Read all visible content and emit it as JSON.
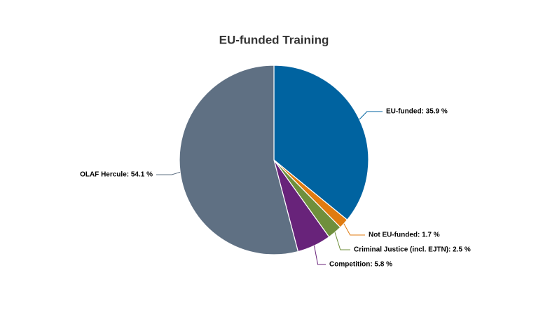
{
  "chart_data": {
    "type": "pie",
    "title": "EU-funded Training",
    "values": [
      35.9,
      1.7,
      2.5,
      5.8,
      54.1
    ],
    "value_labels": [
      "EU-funded: 35.9 %",
      "Not EU-funded: 1.7 %",
      "Criminal Justice (incl. EJTN): 2.5 %",
      "Competition: 5.8 %",
      "OLAF Hercule: 54.1 %"
    ],
    "colors": [
      "#0063a0",
      "#e07b10",
      "#6f8f3c",
      "#68237a",
      "#5f7083"
    ]
  }
}
